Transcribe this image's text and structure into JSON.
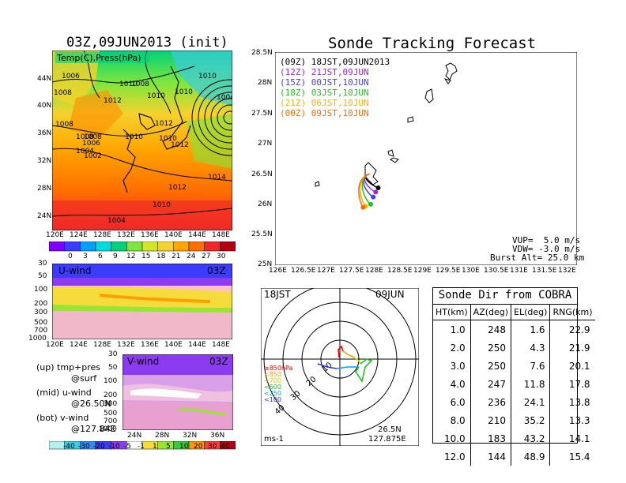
{
  "left": {
    "map_title": "03Z,09JUN2013 (init)",
    "map_label": "Temp(C),Press(hPa)",
    "map_lat_ticks": [
      "44N",
      "40N",
      "36N",
      "32N",
      "28N",
      "24N"
    ],
    "map_lon_ticks": [
      "120E",
      "124E",
      "128E",
      "132E",
      "136E",
      "140E",
      "144E",
      "148E"
    ],
    "isobar_labels": [
      "1006",
      "1008",
      "1010",
      "1010",
      "1008",
      "1012",
      "1010",
      "1010",
      "1008",
      "1008",
      "1006",
      "1004",
      "1002",
      "1008",
      "1010",
      "1012",
      "1012",
      "1012",
      "1014",
      "1010",
      "1004",
      "1010",
      "1004"
    ],
    "temp_scale": [
      "0",
      "3",
      "6",
      "9",
      "12",
      "15",
      "18",
      "21",
      "24",
      "27",
      "30"
    ],
    "u_label": "U-wind",
    "u_time": "03Z",
    "u_pres_ticks": [
      "30",
      "50",
      "100",
      "200",
      "300",
      "500",
      "700",
      "1000"
    ],
    "u_lon_ticks": [
      "120E",
      "124E",
      "128E",
      "132E",
      "136E",
      "140E",
      "144E",
      "148E"
    ],
    "v_label": "V-wind",
    "v_time": "03Z",
    "v_pres_ticks": [
      "30",
      "50",
      "100",
      "200",
      "300",
      "500",
      "700",
      "1000"
    ],
    "v_lat_ticks": [
      "24N",
      "28N",
      "32N",
      "36N"
    ],
    "legend_lines": [
      {
        "head": "(up) tmp+pres",
        "sub": "@surf"
      },
      {
        "head": "(mid) u-wind",
        "sub": "@26.50N"
      },
      {
        "head": "(bot) v-wind",
        "sub": "@127.84E"
      }
    ],
    "wind_scale": [
      "-40",
      "-30",
      "-20",
      "-10",
      "-5",
      "-1",
      "1",
      "5",
      "10",
      "20",
      "30",
      "40"
    ]
  },
  "colors": {
    "temp": [
      "#7f00ff",
      "#3c3cff",
      "#00a0ff",
      "#00dcdc",
      "#00d27a",
      "#7ee63c",
      "#d2e628",
      "#f5d22d",
      "#ffa500",
      "#ff6e00",
      "#f02828",
      "#b40014"
    ],
    "wind": [
      "#b4f0f0",
      "#3ccce0",
      "#2f8cff",
      "#3c3cff",
      "#8c3cf0",
      "#ffffff",
      "#f5dc3c",
      "#96e632",
      "#3cc83c",
      "#ff9600",
      "#ff3c3c",
      "#b40014"
    ],
    "tracks": [
      "#000000",
      "#a020f0",
      "#4040ff",
      "#20c020",
      "#ffb000",
      "#ff6a00"
    ]
  },
  "tracking": {
    "title": "Sonde Tracking Forecast",
    "legend": [
      {
        "code": "(09Z)",
        "time": "18JST,09JUN2013"
      },
      {
        "code": "(12Z)",
        "time": "21JST,09JUN"
      },
      {
        "code": "(15Z)",
        "time": "00JST,10JUN"
      },
      {
        "code": "(18Z)",
        "time": "03JST,10JUN"
      },
      {
        "code": "(21Z)",
        "time": "06JST,10JUN"
      },
      {
        "code": "(00Z)",
        "time": "09JST,10JUN"
      }
    ],
    "lat_ticks": [
      "28.5N",
      "28N",
      "27.5N",
      "27N",
      "26.5N",
      "26N",
      "25.5N",
      "25N"
    ],
    "lon_ticks": [
      "126E",
      "126.5E",
      "127E",
      "127.5E",
      "128E",
      "128.5E",
      "129E",
      "129.5E",
      "130E",
      "130.5E",
      "131E",
      "131.5E",
      "132E"
    ],
    "vup": "VUP=  5.0 m/s",
    "vdw": "VDW= -3.0 m/s",
    "burst": "Burst Alt= 25.0 km",
    "start": {
      "lon": 127.875,
      "lat": 26.5
    },
    "endpoints": [
      {
        "lon": 128.05,
        "lat": 26.27
      },
      {
        "lon": 128.0,
        "lat": 26.2
      },
      {
        "lon": 127.95,
        "lat": 26.12
      },
      {
        "lon": 127.9,
        "lat": 26.0
      },
      {
        "lon": 127.8,
        "lat": 25.97
      },
      {
        "lon": 127.75,
        "lat": 25.95
      }
    ]
  },
  "hodograph": {
    "time": "18JST",
    "date": "09JUN",
    "levels": [
      "≥850hPa",
      "<850",
      "<700",
      "<500",
      "<250",
      "<100"
    ],
    "level_colors": [
      "#ff0000",
      "#ffa000",
      "#d0d000",
      "#20c020",
      "#00a0ff",
      "#3030ff"
    ],
    "ring_labels": [
      "10",
      "20",
      "30",
      "40"
    ],
    "unit": "ms-1",
    "lat": "26.5N",
    "lon": "127.875E"
  },
  "sonde_dir": {
    "title": "Sonde Dir from COBRA",
    "headers": [
      "HT(km)",
      "AZ(deg)",
      "EL(deg)",
      "RNG(km)"
    ],
    "rows": [
      [
        "1.0",
        "248",
        "1.6",
        "22.9"
      ],
      [
        "2.0",
        "250",
        "4.3",
        "21.9"
      ],
      [
        "3.0",
        "250",
        "7.6",
        "20.1"
      ],
      [
        "4.0",
        "247",
        "11.8",
        "17.8"
      ],
      [
        "6.0",
        "236",
        "24.1",
        "13.8"
      ],
      [
        "8.0",
        "210",
        "35.2",
        "13.3"
      ],
      [
        "10.0",
        "183",
        "43.2",
        "14.1"
      ],
      [
        "12.0",
        "144",
        "48.9",
        "15.4"
      ]
    ]
  }
}
